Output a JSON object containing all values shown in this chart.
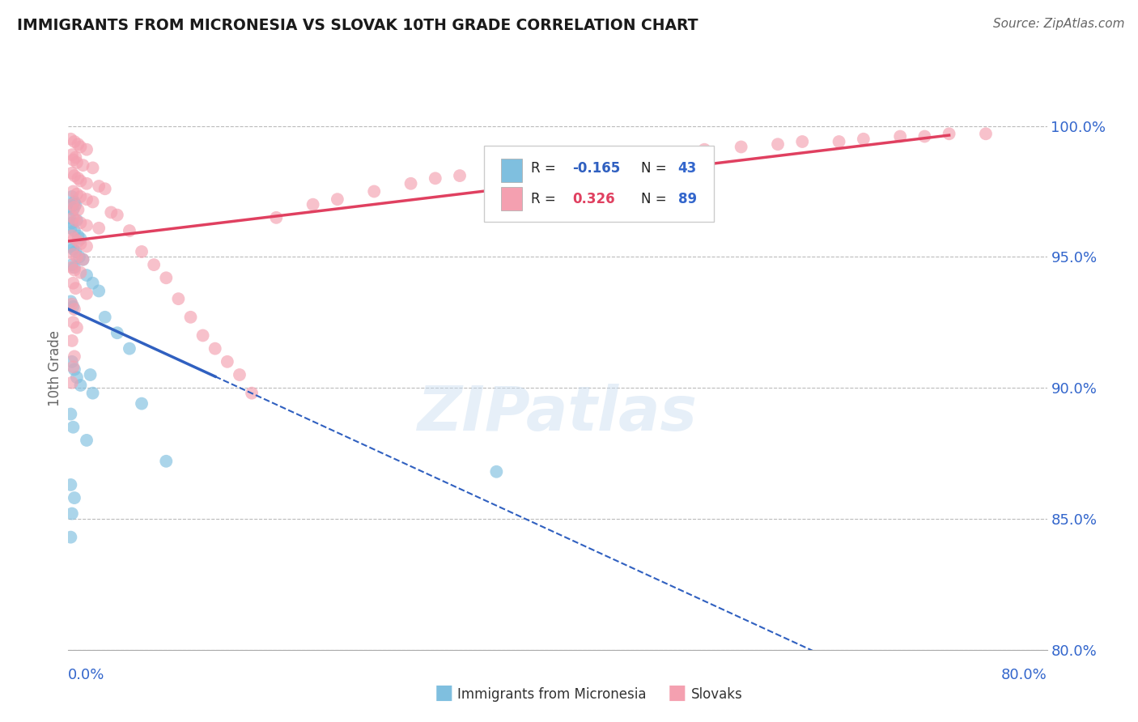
{
  "title": "IMMIGRANTS FROM MICRONESIA VS SLOVAK 10TH GRADE CORRELATION CHART",
  "source": "Source: ZipAtlas.com",
  "ylabel": "10th Grade",
  "xmin": 0.0,
  "xmax": 80.0,
  "ymin": 80.0,
  "ymax": 101.5,
  "yticks": [
    80.0,
    85.0,
    90.0,
    95.0,
    100.0
  ],
  "ytick_labels": [
    "80.0%",
    "85.0%",
    "90.0%",
    "95.0%",
    "100.0%"
  ],
  "blue_marker_color": "#7fbfdf",
  "pink_marker_color": "#f4a0b0",
  "blue_line_color": "#3060c0",
  "pink_line_color": "#e04060",
  "watermark": "ZIPatlas",
  "blue_trend_solid_end": 12.0,
  "blue_points_x": [
    0.3,
    0.5,
    0.2,
    0.6,
    0.4,
    0.1,
    0.3,
    0.7,
    0.2,
    0.5,
    0.8,
    1.0,
    0.2,
    0.4,
    0.6,
    0.9,
    1.2,
    0.3,
    0.5,
    1.5,
    2.0,
    2.5,
    0.2,
    0.4,
    3.0,
    4.0,
    5.0,
    0.3,
    0.5,
    0.7,
    1.0,
    2.0,
    6.0,
    0.2,
    0.4,
    1.5,
    8.0,
    0.2,
    0.5,
    0.3,
    35.0,
    0.2,
    1.8
  ],
  "blue_points_y": [
    97.3,
    97.1,
    96.9,
    97.0,
    96.8,
    96.5,
    96.3,
    96.4,
    96.1,
    96.0,
    95.8,
    95.7,
    95.4,
    95.3,
    95.2,
    95.0,
    94.9,
    94.7,
    94.6,
    94.3,
    94.0,
    93.7,
    93.3,
    93.1,
    92.7,
    92.1,
    91.5,
    91.0,
    90.7,
    90.4,
    90.1,
    89.8,
    89.4,
    89.0,
    88.5,
    88.0,
    87.2,
    86.3,
    85.8,
    85.2,
    86.8,
    84.3,
    90.5
  ],
  "pink_points_x": [
    0.2,
    0.5,
    0.8,
    1.0,
    1.5,
    0.3,
    0.6,
    0.4,
    0.7,
    1.2,
    2.0,
    0.3,
    0.5,
    0.8,
    1.0,
    1.5,
    2.5,
    3.0,
    0.4,
    0.7,
    1.0,
    1.5,
    2.0,
    0.3,
    0.5,
    0.8,
    3.5,
    4.0,
    0.4,
    0.6,
    1.0,
    1.5,
    2.5,
    5.0,
    0.3,
    0.5,
    0.8,
    1.0,
    1.5,
    6.0,
    0.4,
    0.7,
    1.2,
    7.0,
    0.3,
    0.5,
    1.0,
    8.0,
    0.4,
    0.6,
    1.5,
    9.0,
    0.3,
    0.5,
    10.0,
    0.4,
    0.7,
    11.0,
    0.3,
    12.0,
    0.5,
    13.0,
    0.4,
    14.0,
    0.3,
    15.0,
    25.0,
    30.0,
    35.0,
    40.0,
    45.0,
    50.0,
    55.0,
    60.0,
    65.0,
    17.0,
    20.0,
    22.0,
    28.0,
    32.0,
    42.0,
    48.0,
    52.0,
    58.0,
    63.0,
    68.0,
    70.0,
    72.0,
    75.0
  ],
  "pink_points_y": [
    99.5,
    99.4,
    99.3,
    99.2,
    99.1,
    98.9,
    98.8,
    98.7,
    98.6,
    98.5,
    98.4,
    98.2,
    98.1,
    98.0,
    97.9,
    97.8,
    97.7,
    97.6,
    97.5,
    97.4,
    97.3,
    97.2,
    97.1,
    97.0,
    96.9,
    96.8,
    96.7,
    96.6,
    96.5,
    96.4,
    96.3,
    96.2,
    96.1,
    96.0,
    95.8,
    95.7,
    95.6,
    95.5,
    95.4,
    95.2,
    95.1,
    95.0,
    94.9,
    94.7,
    94.6,
    94.5,
    94.4,
    94.2,
    94.0,
    93.8,
    93.6,
    93.4,
    93.2,
    93.0,
    92.7,
    92.5,
    92.3,
    92.0,
    91.8,
    91.5,
    91.2,
    91.0,
    90.8,
    90.5,
    90.2,
    89.8,
    97.5,
    98.0,
    98.2,
    98.5,
    98.7,
    99.0,
    99.2,
    99.4,
    99.5,
    96.5,
    97.0,
    97.2,
    97.8,
    98.1,
    98.6,
    98.8,
    99.1,
    99.3,
    99.4,
    99.6,
    99.6,
    99.7,
    99.7
  ]
}
